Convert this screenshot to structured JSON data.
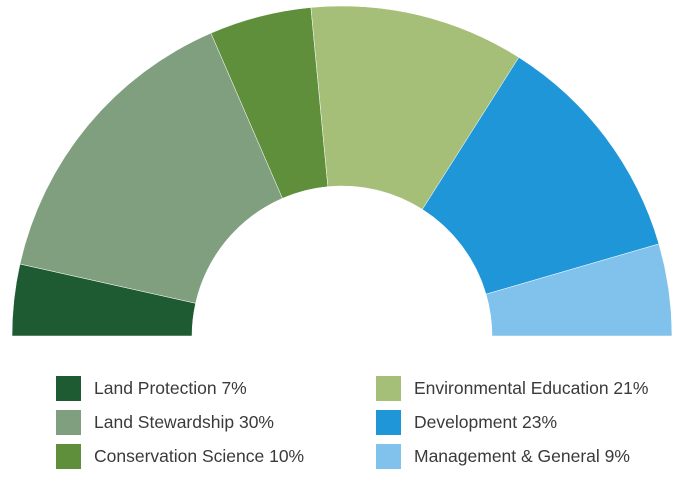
{
  "chart_data": {
    "type": "pie",
    "variant": "half-donut",
    "title": "",
    "slices": [
      {
        "label": "Land Protection",
        "value": 7,
        "color": "#1e5a32"
      },
      {
        "label": "Land Stewardship",
        "value": 30,
        "color": "#7f9f7f"
      },
      {
        "label": "Conservation Science",
        "value": 10,
        "color": "#5f8f3a"
      },
      {
        "label": "Environmental Education",
        "value": 21,
        "color": "#a5bf78"
      },
      {
        "label": "Development",
        "value": 23,
        "color": "#1f96d8"
      },
      {
        "label": "Management & General",
        "value": 9,
        "color": "#80c2ec"
      }
    ],
    "legend": {
      "placement": "bottom",
      "entries": [
        "Land Protection 7%",
        "Land Stewardship 30%",
        "Conservation Science 10%",
        "Environmental Education 21%",
        "Development 23%",
        "Management & General 9%"
      ]
    }
  }
}
